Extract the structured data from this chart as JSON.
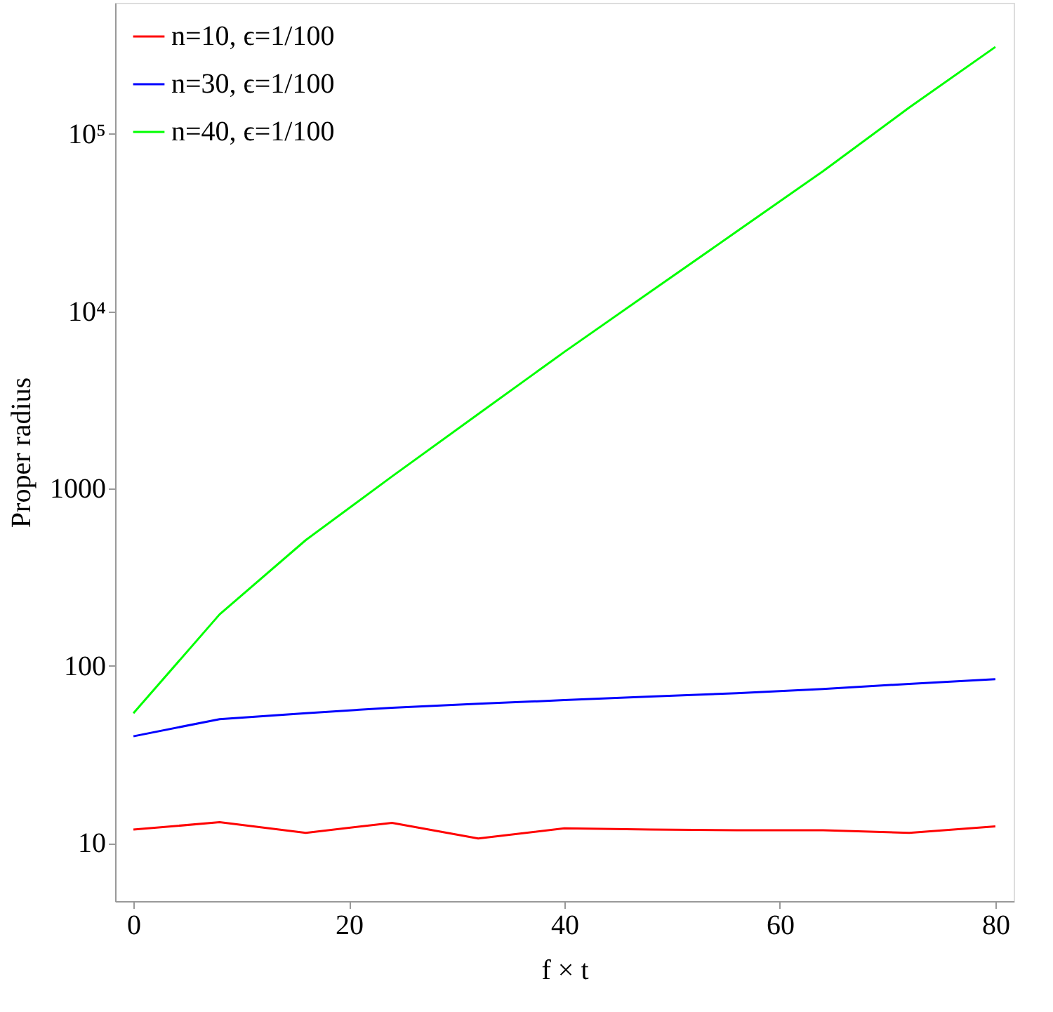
{
  "chart_data": {
    "type": "line",
    "xlabel": "f × t",
    "ylabel": "Proper radius",
    "x": [
      0,
      8,
      16,
      24,
      32,
      40,
      48,
      56,
      64,
      72,
      80
    ],
    "series": [
      {
        "name": "n=10, ϵ=1/100",
        "color": "#ff0000",
        "values": [
          11.9,
          13.1,
          11.4,
          13.0,
          10.6,
          12.1,
          11.9,
          11.8,
          11.8,
          11.4,
          12.4
        ]
      },
      {
        "name": "n=30, ϵ=1/100",
        "color": "#0000ff",
        "values": [
          40,
          50,
          54,
          58,
          61,
          64,
          67,
          70,
          74,
          79,
          84
        ]
      },
      {
        "name": "n=40, ϵ=1/100",
        "color": "#00ff00",
        "values": [
          54,
          195,
          512,
          1170,
          2630,
          5900,
          12900,
          28200,
          61700,
          141000,
          310000
        ]
      }
    ],
    "log": "y",
    "xlim": [
      -1.7,
      81.7
    ],
    "ylim": [
      4.7,
      550000
    ],
    "xticks": [
      0,
      20,
      40,
      60,
      80
    ],
    "yticks": [
      10,
      100,
      1000,
      {
        "value": 10000,
        "label": "10⁴"
      },
      {
        "value": 100000,
        "label": "10⁵"
      }
    ],
    "grid": false,
    "legend": "top left",
    "marker": "none",
    "line_style": "solid"
  }
}
